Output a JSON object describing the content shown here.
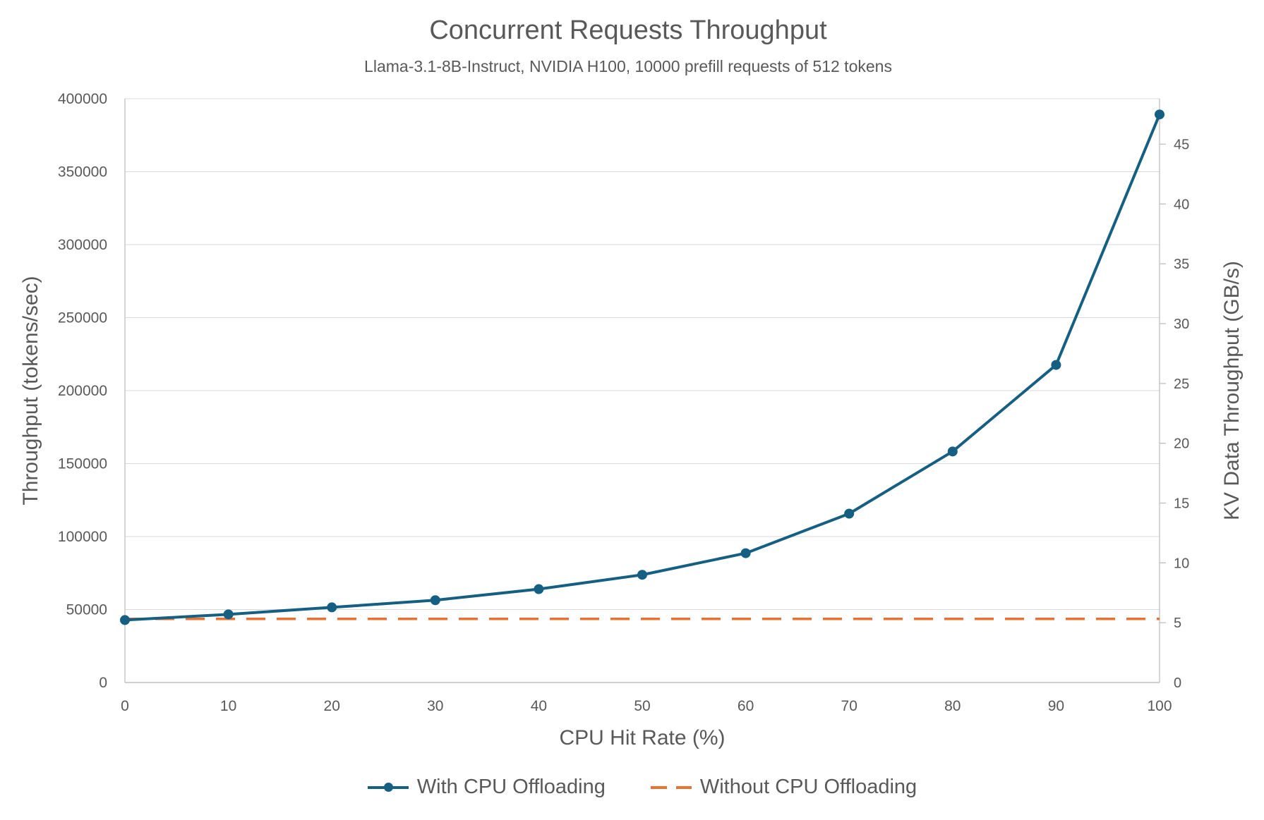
{
  "colors": {
    "text": "#595959",
    "gridline": "#D9D9D9",
    "axis_line": "#BFBFBF",
    "series_blue": "#156082",
    "series_orange": "#E97132"
  },
  "chart_data": {
    "type": "line",
    "title": "Concurrent Requests Throughput",
    "subtitle": "Llama-3.1-8B-Instruct, NVIDIA H100, 10000 prefill requests of 512 tokens",
    "xlabel": "CPU Hit Rate (%)",
    "ylabel_left": "Throughput (tokens/sec)",
    "ylabel_right": "KV Data Throughput (GB/s)",
    "x": [
      0,
      10,
      20,
      30,
      40,
      50,
      60,
      70,
      80,
      90,
      100
    ],
    "xlim": [
      0,
      100
    ],
    "ylim_left": [
      0,
      400000
    ],
    "ylim_right": [
      0,
      48.8
    ],
    "y_left_ticks": [
      0,
      50000,
      100000,
      150000,
      200000,
      250000,
      300000,
      350000,
      400000
    ],
    "y_right_ticks": [
      0,
      5,
      10,
      15,
      20,
      25,
      30,
      35,
      40,
      45
    ],
    "grid": "horizontal",
    "legend_position": "bottom",
    "series": [
      {
        "name": "With CPU Offloading",
        "color": "#156082",
        "style": "solid",
        "marker": "circle",
        "values": [
          42800,
          46700,
          51500,
          56400,
          64000,
          73800,
          88600,
          115700,
          158300,
          217600,
          389200
        ]
      },
      {
        "name": "Without CPU Offloading",
        "color": "#E97132",
        "style": "dashed",
        "marker": "none",
        "values": [
          43600,
          43600,
          43600,
          43600,
          43600,
          43600,
          43600,
          43600,
          43600,
          43600,
          43600
        ]
      }
    ]
  }
}
